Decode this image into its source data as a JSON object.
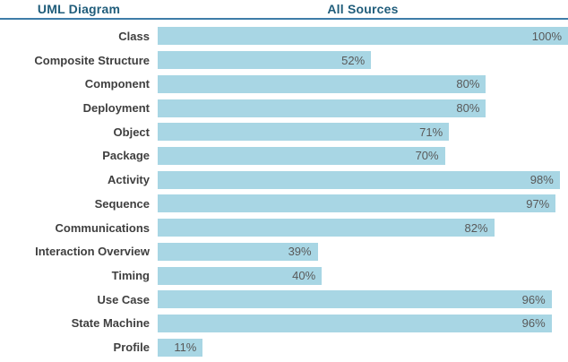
{
  "header": {
    "left_label": "UML Diagram",
    "right_label": "All Sources"
  },
  "colors": {
    "bar": "#A8D6E4",
    "divider": "#3E7CA8",
    "header_text": "#205D7B",
    "label_text": "#3F3F3F",
    "value_text": "#595959",
    "background": "#FFFFFF"
  },
  "chart_data": {
    "type": "bar",
    "orientation": "horizontal",
    "title": "All Sources",
    "category_axis_label": "UML Diagram",
    "value_suffix": "%",
    "xlim": [
      0,
      100
    ],
    "grid": false,
    "legend": false,
    "value_labels_position": "inside-end",
    "categories": [
      "Class",
      "Composite Structure",
      "Component",
      "Deployment",
      "Object",
      "Package",
      "Activity",
      "Sequence",
      "Communications",
      "Interaction Overview",
      "Timing",
      "Use Case",
      "State Machine",
      "Profile"
    ],
    "values": [
      100,
      52,
      80,
      80,
      71,
      70,
      98,
      97,
      82,
      39,
      40,
      96,
      96,
      11
    ]
  }
}
